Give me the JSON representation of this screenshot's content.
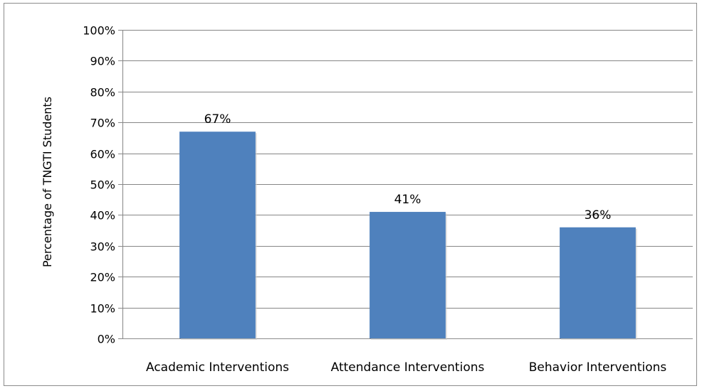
{
  "chart_data": {
    "type": "bar",
    "title": "",
    "xlabel": "",
    "ylabel": "Percentage of TNGTI Students",
    "categories": [
      "Academic Interventions",
      "Attendance Interventions",
      "Behavior Interventions"
    ],
    "values": [
      67,
      41,
      36
    ],
    "value_labels": [
      "67%",
      "41%",
      "36%"
    ],
    "ylim": [
      0,
      100
    ],
    "yticks": [
      0,
      10,
      20,
      30,
      40,
      50,
      60,
      70,
      80,
      90,
      100
    ],
    "ytick_labels": [
      "0%",
      "10%",
      "20%",
      "30%",
      "40%",
      "50%",
      "60%",
      "70%",
      "80%",
      "90%",
      "100%"
    ],
    "bar_color": "#4f81bd",
    "grid": true,
    "legend": "none"
  }
}
